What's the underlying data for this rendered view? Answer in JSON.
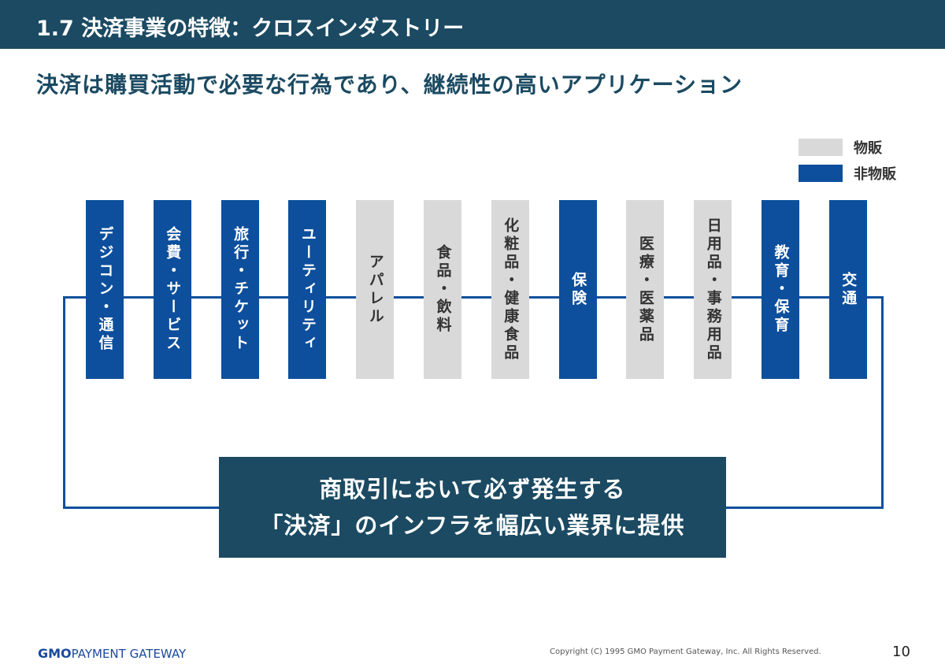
{
  "header": {
    "title": "1.7  決済事業の特徴：クロスインダストリー"
  },
  "subtitle": "決済は購買活動で必要な行為であり、継続性の高いアプリケーション",
  "legend": [
    {
      "label": "物販",
      "color": "#d9d9d9"
    },
    {
      "label": "非物販",
      "color": "#0d4f9c"
    }
  ],
  "industries": [
    {
      "label": "デジコン・通信",
      "type": "非物販"
    },
    {
      "label": "会費・サービス",
      "type": "非物販"
    },
    {
      "label": "旅行・チケット",
      "type": "非物販"
    },
    {
      "label": "ユーティリティ",
      "type": "非物販"
    },
    {
      "label": "アパレル",
      "type": "物販"
    },
    {
      "label": "食品・飲料",
      "type": "物販"
    },
    {
      "label": "化粧品・健康食品",
      "type": "物販"
    },
    {
      "label": "保険",
      "type": "非物販"
    },
    {
      "label": "医療・医薬品",
      "type": "物販"
    },
    {
      "label": "日用品・事務用品",
      "type": "物販"
    },
    {
      "label": "教育・保育",
      "type": "非物販"
    },
    {
      "label": "交通",
      "type": "非物販"
    }
  ],
  "message": {
    "line1": "商取引において必ず発生する",
    "line2": "「決済」のインフラを幅広い業界に提供"
  },
  "footer": {
    "logo_bold": "GMO",
    "logo_rest": "PAYMENT GATEWAY",
    "copyright": "Copyright (C) 1995 GMO Payment Gateway, Inc. All Rights Reserved.",
    "page": "10"
  }
}
